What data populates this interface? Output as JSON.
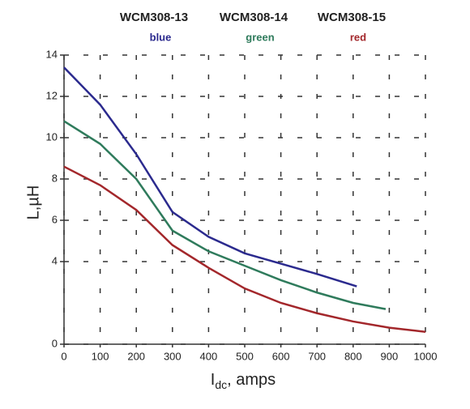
{
  "chart_data": {
    "type": "line",
    "ylabel": "L,µH",
    "xlabel": {
      "main": "I",
      "sub": "dc",
      "rest": ", amps"
    },
    "xlim": [
      0,
      1000
    ],
    "xticks": [
      0,
      100,
      200,
      300,
      400,
      500,
      600,
      700,
      800,
      900,
      1000
    ],
    "ylim": [
      0,
      14
    ],
    "yticks": [
      0,
      4,
      6,
      8,
      10,
      12,
      14
    ],
    "grid": true,
    "series": [
      {
        "name": "WCM308-13",
        "color_label": "blue",
        "color": "#2b2a8e",
        "x": [
          0,
          100,
          200,
          300,
          400,
          500,
          600,
          700,
          810
        ],
        "values": [
          13.4,
          11.6,
          9.2,
          6.4,
          5.2,
          4.4,
          3.9,
          3.4,
          2.8
        ]
      },
      {
        "name": "WCM308-14",
        "color_label": "green",
        "color": "#2f7b5c",
        "x": [
          0,
          100,
          200,
          300,
          400,
          500,
          600,
          700,
          800,
          890
        ],
        "values": [
          10.8,
          9.7,
          8.0,
          5.5,
          4.5,
          3.8,
          3.1,
          2.5,
          2.0,
          1.7
        ]
      },
      {
        "name": "WCM308-15",
        "color_label": "red",
        "color": "#a3272b",
        "x": [
          0,
          100,
          200,
          300,
          400,
          500,
          600,
          700,
          800,
          900,
          1000
        ],
        "values": [
          8.6,
          7.7,
          6.5,
          4.8,
          3.7,
          2.7,
          2.0,
          1.5,
          1.1,
          0.8,
          0.6
        ]
      }
    ]
  }
}
